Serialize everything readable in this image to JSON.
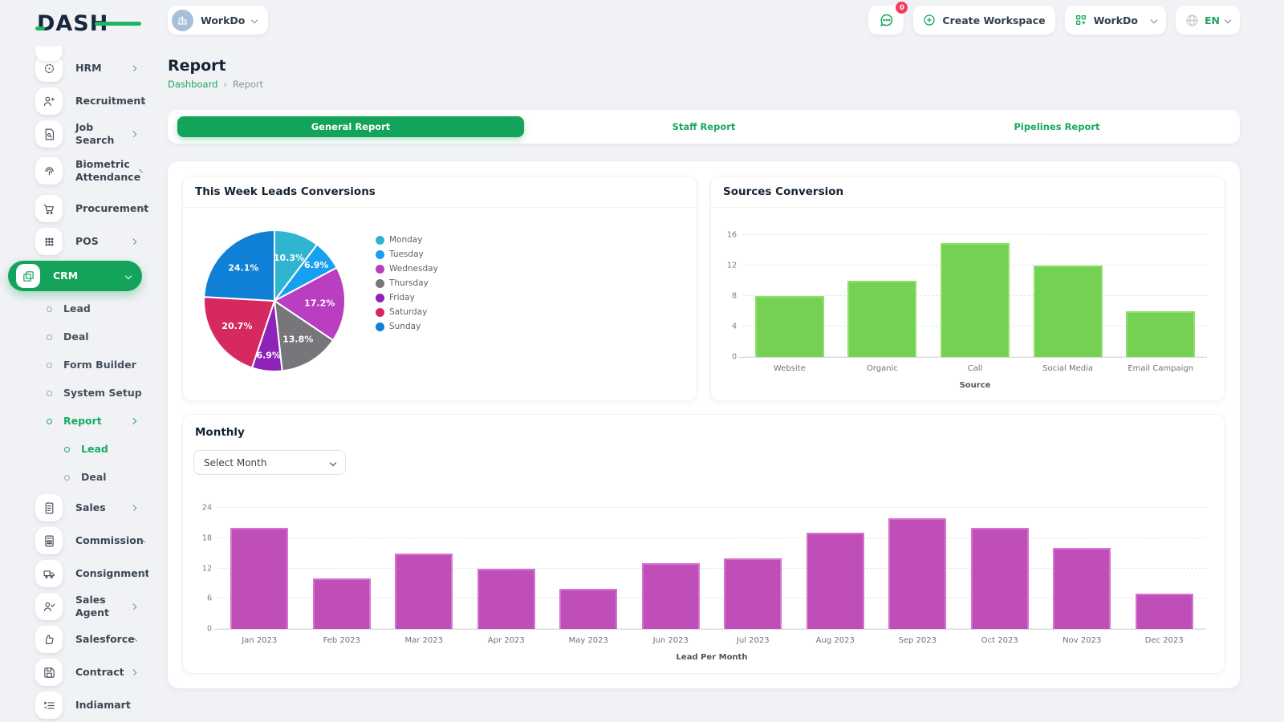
{
  "brand": {
    "logo_text": "DASH"
  },
  "header": {
    "workspace_switcher": {
      "label": "WorkDo"
    },
    "chat_badge": "0",
    "create_workspace_label": "Create Workspace",
    "workspace_menu_label": "WorkDo",
    "language": "EN"
  },
  "sidebar": {
    "items": [
      {
        "label": "HRM",
        "icon": "target-icon",
        "type": "main",
        "chevron": "right"
      },
      {
        "label": "Recruitment",
        "icon": "user-plus-icon",
        "type": "main",
        "chevron": "right"
      },
      {
        "label": "Job Search",
        "icon": "file-search-icon",
        "type": "main",
        "chevron": "right"
      },
      {
        "label": "Biometric Attendance",
        "icon": "fingerprint-icon",
        "type": "main",
        "chevron": "right",
        "tall": true
      },
      {
        "label": "Procurement",
        "icon": "cart-icon",
        "type": "main",
        "chevron": "right"
      },
      {
        "label": "POS",
        "icon": "grid-dots-icon",
        "type": "main",
        "chevron": "right"
      },
      {
        "label": "CRM",
        "icon": "cards-icon",
        "type": "main",
        "chevron": "down",
        "active": true
      },
      {
        "label": "Lead",
        "type": "sub"
      },
      {
        "label": "Deal",
        "type": "sub"
      },
      {
        "label": "Form Builder",
        "type": "sub"
      },
      {
        "label": "System Setup",
        "type": "sub"
      },
      {
        "label": "Report",
        "type": "sub",
        "active": true,
        "chevron": "right"
      },
      {
        "label": "Lead",
        "type": "subsub",
        "active": true
      },
      {
        "label": "Deal",
        "type": "subsub"
      },
      {
        "label": "Sales",
        "icon": "receipt-icon",
        "type": "main",
        "chevron": "right"
      },
      {
        "label": "Commission",
        "icon": "calculator-icon",
        "type": "main",
        "chevron": "right"
      },
      {
        "label": "Consignment",
        "icon": "truck-icon",
        "type": "main",
        "chevron": "right"
      },
      {
        "label": "Sales Agent",
        "icon": "user-check-icon",
        "type": "main",
        "chevron": "right"
      },
      {
        "label": "Salesforce",
        "icon": "thumbs-up-icon",
        "type": "main",
        "chevron": "right"
      },
      {
        "label": "Contract",
        "icon": "save-icon",
        "type": "main",
        "chevron": "right"
      },
      {
        "label": "Indiamart",
        "icon": "list-icon",
        "type": "main"
      }
    ]
  },
  "page": {
    "title": "Report",
    "breadcrumb": {
      "link": "Dashboard",
      "separator": "›",
      "current": "Report"
    }
  },
  "tabs": [
    {
      "label": "General Report",
      "active": true
    },
    {
      "label": "Staff Report",
      "active": false
    },
    {
      "label": "Pipelines Report",
      "active": false
    }
  ],
  "cards": {
    "pie_card_title": "This Week Leads Conversions",
    "bar_card_title": "Sources Conversion",
    "monthly_title": "Monthly",
    "select_month_placeholder": "Select Month"
  },
  "colors": {
    "theme_green": "#14a35a",
    "accent_green_text": "#19a75e"
  },
  "chart_data": [
    {
      "type": "pie",
      "title": "This Week Leads Conversions",
      "labels": [
        "Monday",
        "Tuesday",
        "Wednesday",
        "Thursday",
        "Friday",
        "Saturday",
        "Sunday"
      ],
      "values_percent": [
        10.3,
        6.9,
        17.2,
        13.8,
        6.9,
        20.7,
        24.1
      ],
      "colors": [
        "#2fb5d0",
        "#18a0f0",
        "#ba3ec0",
        "#77777b",
        "#8d23b8",
        "#d62960",
        "#1080d6"
      ],
      "legend_position": "right",
      "start_angle": "top",
      "direction": "clockwise"
    },
    {
      "type": "bar",
      "title": "Sources Conversion",
      "categories": [
        "Website",
        "Organic",
        "Call",
        "Social Media",
        "Email Campaign"
      ],
      "values": [
        8,
        10,
        15,
        12,
        6
      ],
      "xlabel": "Source",
      "ylim": [
        0,
        16
      ],
      "yticks": [
        0,
        4,
        8,
        12,
        16
      ],
      "bar_color": "#74d153",
      "bar_border_color": "#8fe06e",
      "grid": "dashed"
    },
    {
      "type": "bar",
      "title": "Monthly",
      "categories": [
        "Jan 2023",
        "Feb 2023",
        "Mar 2023",
        "Apr 2023",
        "May 2023",
        "Jun 2023",
        "Jul 2023",
        "Aug 2023",
        "Sep 2023",
        "Oct 2023",
        "Nov 2023",
        "Dec 2023"
      ],
      "values": [
        20,
        10,
        15,
        12,
        8,
        13,
        14,
        19,
        22,
        20,
        16,
        7
      ],
      "xlabel": "Lead Per Month",
      "ylim": [
        0,
        24
      ],
      "yticks": [
        0,
        6,
        12,
        18,
        24
      ],
      "bar_color": "#c04eb8",
      "bar_border_color": "#d673cc",
      "grid": "dashed"
    }
  ]
}
